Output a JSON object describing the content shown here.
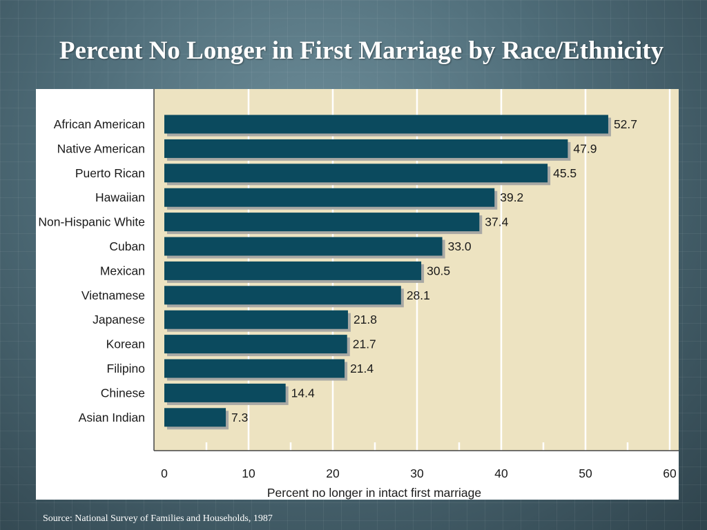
{
  "slide": {
    "title": "Percent No Longer in First Marriage by Race/Ethnicity",
    "source": "Source: National Survey of Families and Households, 1987"
  },
  "colors": {
    "bar": "#0b4a5e",
    "bar_shadow": "#a8a8a4",
    "plot_background": "#ede3c1",
    "gridline": "#ffffff"
  },
  "chart_data": {
    "type": "bar",
    "orientation": "horizontal",
    "categories": [
      "African American",
      "Native American",
      "Puerto Rican",
      "Hawaiian",
      "Non-Hispanic White",
      "Cuban",
      "Mexican",
      "Vietnamese",
      "Japanese",
      "Korean",
      "Filipino",
      "Chinese",
      "Asian Indian"
    ],
    "values": [
      52.7,
      47.9,
      45.5,
      39.2,
      37.4,
      33.0,
      30.5,
      28.1,
      21.8,
      21.7,
      21.4,
      14.4,
      7.3
    ],
    "value_labels": [
      "52.7",
      "47.9",
      "45.5",
      "39.2",
      "37.4",
      "33.0",
      "30.5",
      "28.1",
      "21.8",
      "21.7",
      "21.4",
      "14.4",
      "7.3"
    ],
    "xlabel": "Percent no longer in intact first marriage",
    "ylabel": "",
    "xlim": [
      0,
      60
    ],
    "xticks": [
      "0",
      "10",
      "20",
      "30",
      "40",
      "50",
      "60"
    ],
    "grid": true
  }
}
